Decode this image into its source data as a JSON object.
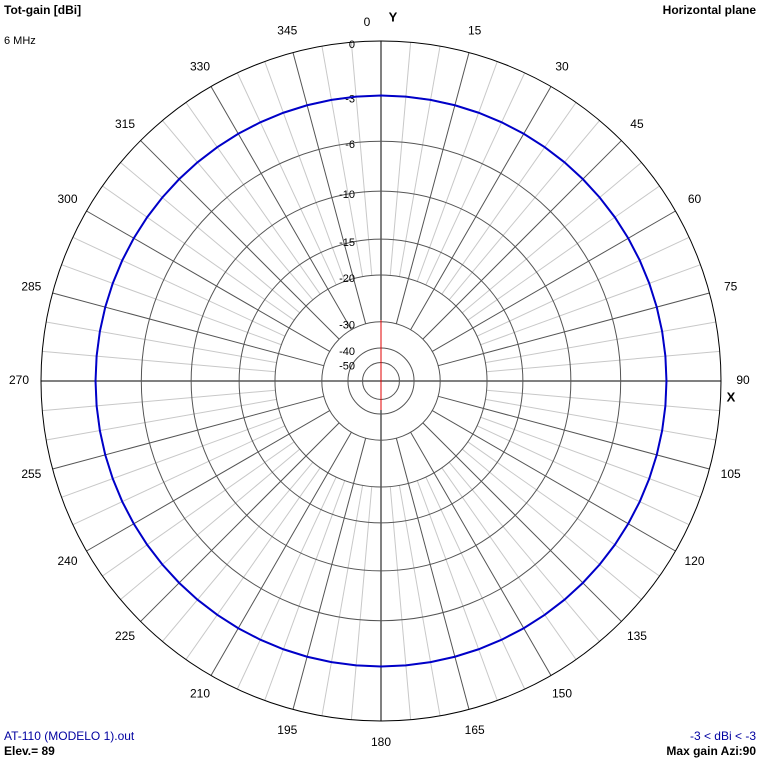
{
  "chart_data": {
    "type": "polar",
    "title": "Tot-gain [dBi]",
    "subtitle": "Horizontal plane",
    "frequency": "6 MHz",
    "y_axis_label": "Y",
    "x_axis_label": "X",
    "file_label": "AT-110 (MODELO 1).out",
    "range_label": "-3 < dBi < -3",
    "elevation_label": "Elev.= 89",
    "max_gain_label": "Max gain Azi:90",
    "rlim": [
      -50,
      0
    ],
    "rticks": [
      0,
      -3,
      -6,
      -10,
      -15,
      -20,
      -30,
      -40,
      -50
    ],
    "thetaticks": [
      0,
      15,
      30,
      45,
      60,
      75,
      90,
      105,
      120,
      135,
      150,
      165,
      180,
      195,
      210,
      225,
      240,
      255,
      270,
      285,
      300,
      315,
      330,
      345
    ],
    "series": [
      {
        "color": "#0000c8",
        "theta": [
          0,
          5,
          10,
          15,
          20,
          25,
          30,
          35,
          40,
          45,
          50,
          55,
          60,
          65,
          70,
          75,
          80,
          85,
          90,
          95,
          100,
          105,
          110,
          115,
          120,
          125,
          130,
          135,
          140,
          145,
          150,
          155,
          160,
          165,
          170,
          175,
          180,
          185,
          190,
          195,
          200,
          205,
          210,
          215,
          220,
          225,
          230,
          235,
          240,
          245,
          250,
          255,
          260,
          265,
          270,
          275,
          280,
          285,
          290,
          295,
          300,
          305,
          310,
          315,
          320,
          325,
          330,
          335,
          340,
          345,
          350,
          355
        ],
        "values": [
          -3,
          -3,
          -3,
          -3,
          -3,
          -3,
          -3,
          -3,
          -3,
          -3,
          -3,
          -3,
          -3,
          -3,
          -3,
          -3,
          -3,
          -3,
          -3,
          -3,
          -3,
          -3,
          -3,
          -3,
          -3,
          -3,
          -3,
          -3,
          -3,
          -3,
          -3,
          -3,
          -3,
          -3,
          -3,
          -3,
          -3,
          -3,
          -3,
          -3,
          -3,
          -3,
          -3,
          -3,
          -3,
          -3,
          -3,
          -3,
          -3,
          -3,
          -3,
          -3,
          -3,
          -3,
          -3,
          -3,
          -3,
          -3,
          -3,
          -3,
          -3,
          -3,
          -3,
          -3,
          -3,
          -3,
          -3,
          -3,
          -3,
          -3,
          -3,
          -3
        ]
      }
    ]
  }
}
